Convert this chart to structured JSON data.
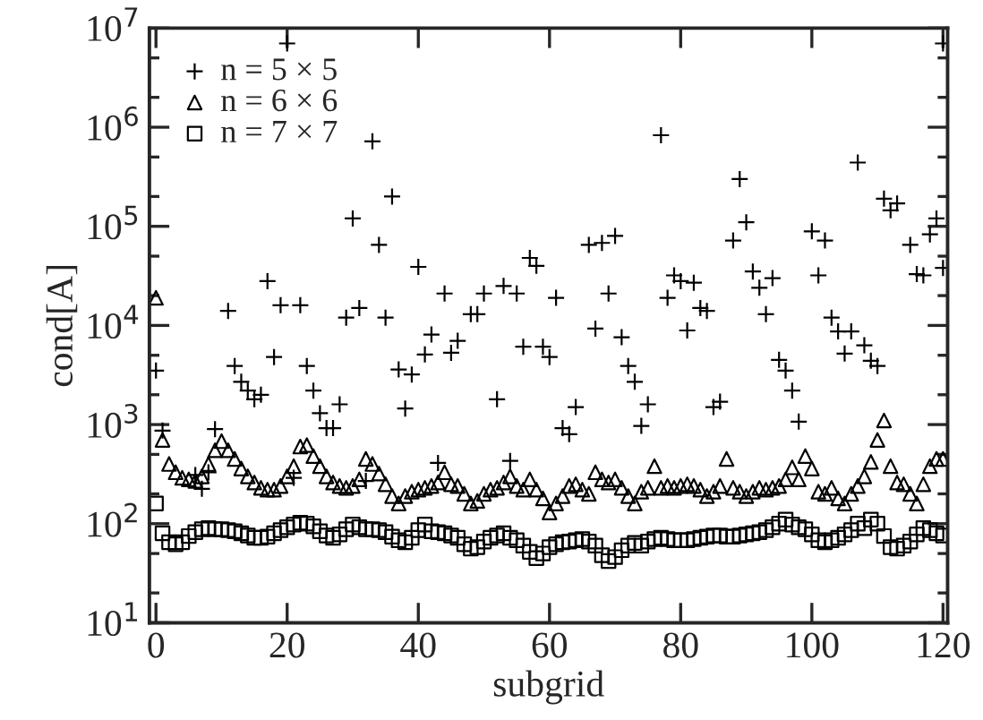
{
  "chart_data": {
    "type": "scatter",
    "xlabel": "subgrid",
    "ylabel": "cond[A]",
    "log": "y",
    "grid": false,
    "legend": "top left",
    "xlim": [
      -1,
      120.7
    ],
    "xticks": [
      0,
      20,
      40,
      60,
      80,
      100,
      120
    ],
    "ylim": [
      10,
      10000000
    ],
    "yticks": [
      {
        "value": 10,
        "label": "10$^{1}$"
      },
      {
        "value": 100,
        "label": "10$^{2}$"
      },
      {
        "value": 1000,
        "label": "10$^{3}$"
      },
      {
        "value": 10000,
        "label": "10$^{4}$"
      },
      {
        "value": 100000,
        "label": "10$^{5}$"
      },
      {
        "value": 1000000,
        "label": "10$^{6}$"
      },
      {
        "value": 10000000,
        "label": "10$^{7}$"
      }
    ],
    "x": [
      0,
      1,
      2,
      3,
      4,
      5,
      6,
      7,
      8,
      9,
      10,
      11,
      12,
      13,
      14,
      15,
      16,
      17,
      18,
      19,
      20,
      21,
      22,
      23,
      24,
      25,
      26,
      27,
      28,
      29,
      30,
      31,
      32,
      33,
      34,
      35,
      36,
      37,
      38,
      39,
      40,
      41,
      42,
      43,
      44,
      45,
      46,
      47,
      48,
      49,
      50,
      51,
      52,
      53,
      54,
      55,
      56,
      57,
      58,
      59,
      60,
      61,
      62,
      63,
      64,
      65,
      66,
      67,
      68,
      69,
      70,
      71,
      72,
      73,
      74,
      75,
      76,
      77,
      78,
      79,
      80,
      81,
      82,
      83,
      84,
      85,
      86,
      87,
      88,
      89,
      90,
      91,
      92,
      93,
      94,
      95,
      96,
      97,
      98,
      99,
      100,
      101,
      102,
      103,
      104,
      105,
      106,
      107,
      108,
      109,
      110,
      111,
      112,
      113,
      114,
      115,
      116,
      117,
      118,
      119,
      120
    ],
    "series": [
      {
        "name": "n = 5 × 5",
        "color": "#000000",
        "marker": "cross",
        "x": [
          0,
          1,
          6,
          7,
          8,
          9,
          11,
          12,
          13,
          14,
          15,
          16,
          17,
          18,
          19,
          20,
          21,
          22,
          23,
          24,
          25,
          26,
          27,
          28,
          29,
          30,
          31,
          32,
          33,
          34,
          35,
          36,
          37,
          38,
          39,
          40,
          41,
          42,
          43,
          44,
          45,
          46,
          48,
          49,
          50,
          52,
          53,
          54,
          55,
          56,
          57,
          58,
          59,
          60,
          61,
          62,
          63,
          64,
          66,
          67,
          68,
          69,
          70,
          71,
          72,
          73,
          74,
          75,
          77,
          78,
          79,
          80,
          81,
          82,
          83,
          84,
          85,
          86,
          88,
          89,
          90,
          91,
          92,
          93,
          94,
          95,
          96,
          97,
          98,
          100,
          101,
          102,
          103,
          104,
          105,
          106,
          107,
          108,
          109,
          110,
          111,
          112,
          113,
          115,
          116,
          117,
          118,
          119,
          120,
          120
        ],
        "values": [
          3500,
          870,
          310,
          225,
          330,
          900,
          14000,
          3900,
          2700,
          2200,
          1800,
          2000,
          28000,
          4800,
          16000,
          7000000,
          290,
          16000,
          3900,
          2200,
          1300,
          920,
          920,
          1600,
          12000,
          120000,
          15000,
          270,
          720000,
          65000,
          12000,
          200000,
          3600,
          1450,
          3200,
          39000,
          5100,
          8100,
          410,
          21000,
          5300,
          7000,
          13000,
          13000,
          21000,
          1800,
          25000,
          430,
          21000,
          6100,
          48000,
          40000,
          6100,
          4800,
          19000,
          920,
          800,
          1500,
          65000,
          9300,
          68000,
          21000,
          80000,
          7600,
          3900,
          2700,
          970,
          1600,
          830000,
          19000,
          32000,
          28000,
          8900,
          27000,
          15000,
          14000,
          1500,
          1700,
          72000,
          300000,
          110000,
          35000,
          24000,
          13000,
          30000,
          4500,
          3500,
          2200,
          1070,
          89000,
          32000,
          72000,
          12000,
          8700,
          5200,
          8700,
          440000,
          6300,
          4400,
          3900,
          190000,
          145000,
          170000,
          65000,
          33000,
          32000,
          83000,
          120000,
          38000,
          7000000
        ]
      },
      {
        "name": "n = 6 × 6",
        "color": "#000000",
        "marker": "triangle",
        "values": [
          19000,
          700,
          400,
          330,
          290,
          280,
          270,
          300,
          400,
          550,
          680,
          550,
          450,
          360,
          300,
          260,
          230,
          220,
          220,
          240,
          300,
          380,
          600,
          620,
          480,
          380,
          300,
          260,
          240,
          230,
          240,
          280,
          450,
          400,
          320,
          250,
          190,
          160,
          190,
          210,
          220,
          230,
          240,
          260,
          330,
          250,
          240,
          200,
          160,
          170,
          200,
          220,
          230,
          260,
          300,
          240,
          220,
          280,
          220,
          180,
          130,
          160,
          190,
          240,
          250,
          220,
          200,
          330,
          280,
          260,
          280,
          230,
          190,
          160,
          210,
          230,
          380,
          230,
          240,
          230,
          240,
          250,
          240,
          220,
          190,
          210,
          240,
          450,
          230,
          210,
          190,
          210,
          230,
          220,
          230,
          240,
          280,
          370,
          280,
          480,
          360,
          210,
          200,
          230,
          180,
          160,
          200,
          240,
          300,
          420,
          700,
          1100,
          380,
          260,
          250,
          200,
          160,
          250,
          380,
          450,
          450
        ]
      },
      {
        "name": "n = 7 × 7",
        "color": "#000000",
        "marker": "square",
        "values": [
          160,
          80,
          65,
          62,
          65,
          75,
          82,
          88,
          90,
          88,
          88,
          86,
          84,
          80,
          76,
          72,
          72,
          74,
          80,
          86,
          92,
          98,
          102,
          100,
          94,
          84,
          76,
          72,
          78,
          88,
          98,
          92,
          88,
          88,
          86,
          82,
          74,
          68,
          65,
          72,
          86,
          98,
          84,
          82,
          80,
          76,
          72,
          62,
          56,
          58,
          66,
          72,
          76,
          80,
          72,
          68,
          60,
          52,
          45,
          50,
          58,
          62,
          65,
          66,
          68,
          70,
          66,
          60,
          48,
          42,
          46,
          54,
          60,
          64,
          60,
          66,
          70,
          72,
          70,
          68,
          68,
          68,
          70,
          72,
          74,
          76,
          76,
          74,
          74,
          76,
          78,
          80,
          82,
          86,
          92,
          100,
          110,
          98,
          92,
          88,
          78,
          68,
          65,
          68,
          72,
          78,
          86,
          100,
          90,
          110,
          100,
          75,
          58,
          56,
          60,
          66,
          78,
          90,
          86,
          80,
          76
        ]
      }
    ]
  }
}
